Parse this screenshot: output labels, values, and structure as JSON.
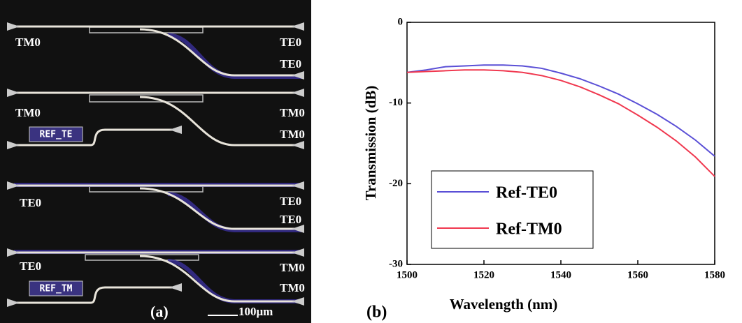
{
  "panel_a": {
    "rows": [
      {
        "left": "TM0",
        "right_top": "TE0",
        "right_bottom": "TE0"
      },
      {
        "left": "TM0",
        "right_top": "TM0",
        "right_bottom": "TM0",
        "reference": "REF_TE"
      },
      {
        "left": "TE0",
        "right_top": "TE0",
        "right_bottom": "TE0"
      },
      {
        "left": "TE0",
        "right_top": "TM0",
        "right_bottom": "TM0",
        "reference": "REF_TM"
      }
    ],
    "panel_label": "(a)",
    "scale_bar": "100μm"
  },
  "panel_b_label": "(b)",
  "chart_data": {
    "type": "line",
    "x_label": "Wavelength (nm)",
    "y_label": "Transmission (dB)",
    "x": [
      1500,
      1505,
      1510,
      1515,
      1520,
      1525,
      1530,
      1535,
      1540,
      1545,
      1550,
      1555,
      1560,
      1565,
      1570,
      1575,
      1580
    ],
    "series": [
      {
        "name": "Ref-TE0",
        "color": "#5a4fd6",
        "values": [
          -6.2,
          -5.9,
          -5.5,
          -5.4,
          -5.3,
          -5.3,
          -5.4,
          -5.7,
          -6.3,
          -7.0,
          -7.9,
          -8.9,
          -10.1,
          -11.4,
          -12.9,
          -14.6,
          -16.6
        ]
      },
      {
        "name": "Ref-TM0",
        "color": "#f0384f",
        "values": [
          -6.2,
          -6.1,
          -6.0,
          -5.9,
          -5.9,
          -6.0,
          -6.2,
          -6.6,
          -7.2,
          -8.0,
          -9.0,
          -10.1,
          -11.5,
          -13.0,
          -14.7,
          -16.7,
          -19.1
        ]
      }
    ],
    "xlim": [
      1500,
      1580
    ],
    "xticks": [
      1500,
      1520,
      1540,
      1560,
      1580
    ],
    "ylim": [
      -30,
      0
    ],
    "yticks": [
      0,
      -10,
      -20,
      -30
    ],
    "legend": "lower-left"
  }
}
